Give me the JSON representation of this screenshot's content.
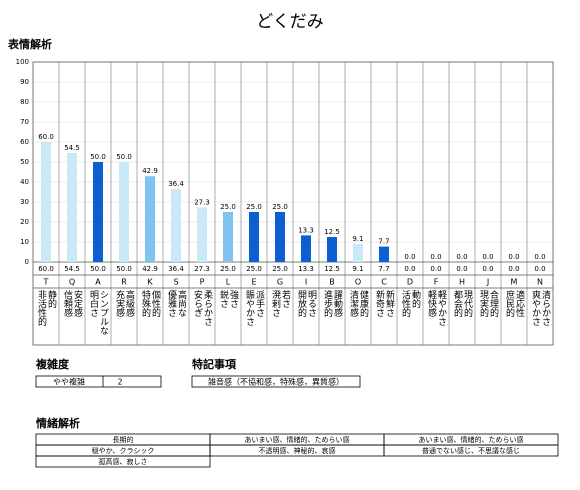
{
  "chart_data": {
    "type": "bar",
    "title": "どくだみ",
    "subtitle": "表情解析",
    "categories": [
      "T",
      "Q",
      "A",
      "R",
      "K",
      "S",
      "P",
      "L",
      "E",
      "G",
      "I",
      "B",
      "O",
      "C",
      "D",
      "F",
      "H",
      "J",
      "M",
      "N"
    ],
    "labels": [
      [
        "非活性的",
        "静的"
      ],
      [
        "信頼感",
        "安定感"
      ],
      [
        "明白さ",
        "シンプルな"
      ],
      [
        "充実感",
        "高級感"
      ],
      [
        "特殊的",
        "個性的"
      ],
      [
        "優雅さ",
        "高尚な"
      ],
      [
        "安らぎ",
        "柔らかさ"
      ],
      [
        "鋭さ",
        "強さ"
      ],
      [
        "賑やかさ",
        "派手さ"
      ],
      [
        "溌剌さ",
        "若さ"
      ],
      [
        "開放的",
        "明るさ"
      ],
      [
        "進歩的",
        "躍動感"
      ],
      [
        "清潔感",
        "健康的"
      ],
      [
        "新奇さ",
        "新鮮さ"
      ],
      [
        "活性的",
        "動的"
      ],
      [
        "軽快感",
        "軽やかさ"
      ],
      [
        "都会的",
        "現代的"
      ],
      [
        "現実的",
        "合理的"
      ],
      [
        "庶民的",
        "適応性"
      ],
      [
        "爽やかさ",
        "清らかさ"
      ]
    ],
    "values": [
      60,
      54.5,
      50,
      50,
      42.9,
      36.4,
      27.3,
      25,
      25,
      25,
      13.3,
      12.5,
      9.1,
      7.7,
      0,
      0,
      0,
      0,
      0,
      0
    ],
    "value_labels": [
      "60.0",
      "54.5",
      "50.0",
      "50.0",
      "42.9",
      "36.4",
      "27.3",
      "25.0",
      "25.0",
      "25.0",
      "13.3",
      "12.5",
      "9.1",
      "7.7",
      "0.0",
      "0.0",
      "0.0",
      "0.0",
      "0.0",
      "0.0"
    ],
    "colors": [
      "#c9e8f8",
      "#c9e8f8",
      "#0b5fd0",
      "#c9e8f8",
      "#7fc3ee",
      "#c9e8f8",
      "#c9e8f8",
      "#7fc3ee",
      "#0b5fd0",
      "#0b5fd0",
      "#0b5fd0",
      "#0b5fd0",
      "#c9e8f8",
      "#0b5fd0",
      "#c9e8f8",
      "#c9e8f8",
      "#c9e8f8",
      "#c9e8f8",
      "#c9e8f8",
      "#c9e8f8"
    ],
    "ylim": [
      0,
      100
    ],
    "yticks": [
      0,
      10,
      20,
      30,
      40,
      50,
      60,
      70,
      80,
      90,
      100
    ],
    "grid": true
  },
  "complexity": {
    "title": "複雑度",
    "label": "やや複雑",
    "value": "2"
  },
  "notes": {
    "title": "特記事項",
    "text": "雑音感（不協和感，特殊感，異質感）"
  },
  "emotion": {
    "title": "情緒解析",
    "rows": [
      [
        "長期的",
        "あいまい感、情緒的、ためらい感",
        "あいまい感、情緒的、ためらい感"
      ],
      [
        "穏やか、クラシック",
        "不透明感、神秘的、哀感",
        "普通でない感じ、不思議な感じ"
      ],
      [
        "孤高感、寂しさ"
      ]
    ]
  }
}
